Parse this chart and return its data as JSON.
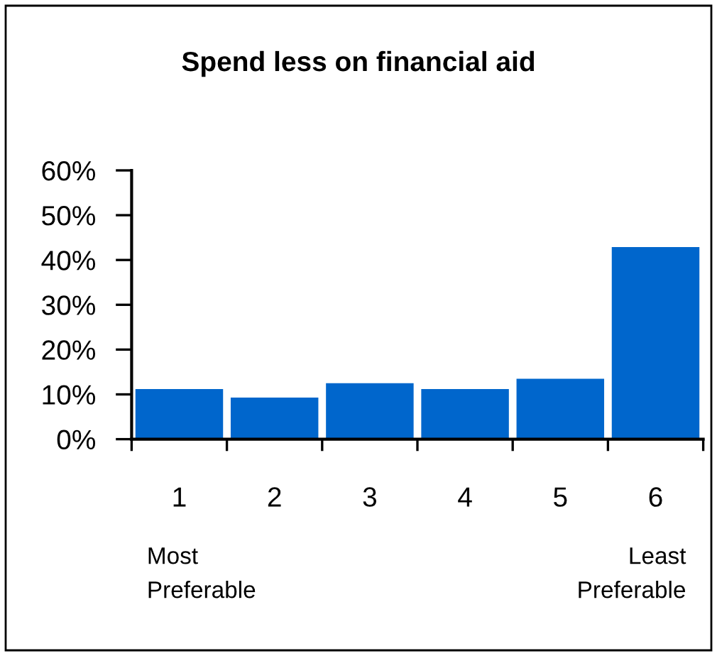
{
  "chart_data": {
    "type": "bar",
    "title": "Spend less on financial aid",
    "categories": [
      "1",
      "2",
      "3",
      "4",
      "5",
      "6"
    ],
    "values": [
      11.2,
      9.3,
      12.5,
      11.2,
      13.5,
      42.9
    ],
    "color": "#0066cc",
    "ylim": [
      0,
      60
    ],
    "yticks": [
      {
        "value": 0,
        "label": "0%"
      },
      {
        "value": 10,
        "label": "10%"
      },
      {
        "value": 20,
        "label": "20%"
      },
      {
        "value": 30,
        "label": "30%"
      },
      {
        "value": 40,
        "label": "40%"
      },
      {
        "value": 50,
        "label": "50%"
      },
      {
        "value": 60,
        "label": "60%"
      }
    ],
    "annotations": [
      "Most\nPreferable",
      "Least\nPreferable"
    ],
    "grid": false,
    "legend": false
  }
}
